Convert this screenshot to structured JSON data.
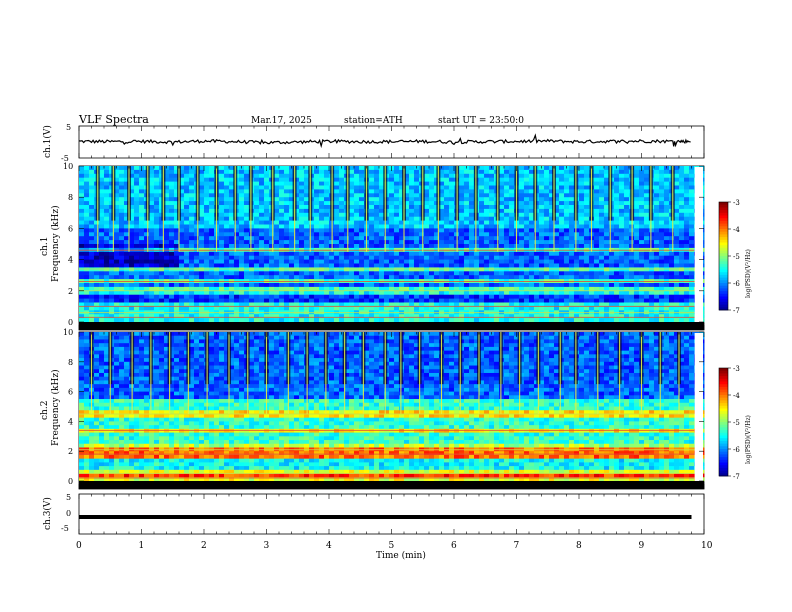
{
  "header": {
    "title": "VLF  Spectra",
    "date": "Mar.17, 2025",
    "station": "station=ATH",
    "start": "start  UT  =   23:50:0"
  },
  "chart_data": [
    {
      "type": "line",
      "name": "ch1-waveform",
      "ylabel": "ch.1(V)",
      "ylim": [
        -5,
        5
      ],
      "yticks": [
        "5",
        "-5"
      ],
      "xlim": [
        0,
        10
      ],
      "x": [
        0,
        0.5,
        1,
        1.5,
        2,
        2.5,
        3,
        3.5,
        4,
        4.5,
        5,
        5.5,
        6,
        6.5,
        7,
        7.5,
        8,
        8.5,
        9,
        9.5,
        9.8
      ],
      "y": [
        0.2,
        0.1,
        0.2,
        0.0,
        0.3,
        0.1,
        -0.2,
        0.0,
        0.2,
        0.1,
        0.1,
        0.2,
        0.0,
        0.1,
        0.2,
        0.3,
        0.1,
        0.2,
        0.3,
        0.2,
        0.2
      ]
    },
    {
      "type": "heatmap",
      "name": "ch1-spectrogram",
      "ylabel": "ch.1",
      "ylabel2": "Frequency  (kHz)",
      "ylim": [
        0,
        10
      ],
      "yticks": [
        "0",
        "2",
        "4",
        "6",
        "8",
        "10"
      ],
      "xlim": [
        0,
        10
      ],
      "colorbar": {
        "label": "log(PSD)(V²/Hz)",
        "ticks": [
          "-3",
          "-4",
          "-5",
          "-6",
          "-7"
        ],
        "range": [
          -7,
          -3
        ]
      },
      "bands_khz": [
        0.3,
        0.6,
        1.0,
        2.0,
        2.6,
        3.4,
        4.6
      ],
      "sferic_times_min": [
        0.3,
        0.55,
        0.8,
        1.1,
        1.35,
        1.6,
        1.9,
        2.2,
        2.5,
        2.75,
        3.1,
        3.45,
        3.7,
        4.05,
        4.3,
        4.6,
        4.9,
        5.2,
        5.5,
        5.75,
        6.05,
        6.35,
        6.7,
        7.0,
        7.3,
        7.6,
        7.95,
        8.2,
        8.5,
        8.85,
        9.15,
        9.5
      ]
    },
    {
      "type": "heatmap",
      "name": "ch2-spectrogram",
      "ylabel": "ch.2",
      "ylabel2": "Frequency  (kHz)",
      "ylim": [
        0,
        10
      ],
      "yticks": [
        "0",
        "2",
        "4",
        "6",
        "8",
        "10"
      ],
      "xlim": [
        0,
        10
      ],
      "colorbar": {
        "label": "log(PSD)(V²/Hz)",
        "ticks": [
          "-3",
          "-4",
          "-5",
          "-6",
          "-7"
        ],
        "range": [
          -7,
          -3
        ]
      },
      "bands_khz": [
        0.2,
        0.5,
        1.8,
        2.1,
        3.4,
        4.5
      ],
      "sferic_times_min": [
        0.2,
        0.5,
        0.85,
        1.15,
        1.45,
        1.75,
        2.05,
        2.4,
        2.7,
        3.0,
        3.35,
        3.65,
        3.95,
        4.25,
        4.55,
        4.9,
        5.15,
        5.45,
        5.8,
        6.1,
        6.4,
        6.75,
        7.05,
        7.35,
        7.7,
        7.95,
        8.3,
        8.65,
        9.0,
        9.3,
        9.6
      ]
    },
    {
      "type": "line",
      "name": "ch3-waveform",
      "ylabel": "ch.3(V)",
      "ylim": [
        -5,
        5
      ],
      "yticks": [
        "5",
        "0",
        "-5"
      ],
      "xlim": [
        0,
        10
      ],
      "xlabel": "Time  (min)",
      "xticks": [
        "0",
        "1",
        "2",
        "3",
        "4",
        "5",
        "6",
        "7",
        "8",
        "9",
        "10"
      ],
      "x": [
        0,
        9.8
      ],
      "y": [
        0,
        0
      ]
    }
  ]
}
